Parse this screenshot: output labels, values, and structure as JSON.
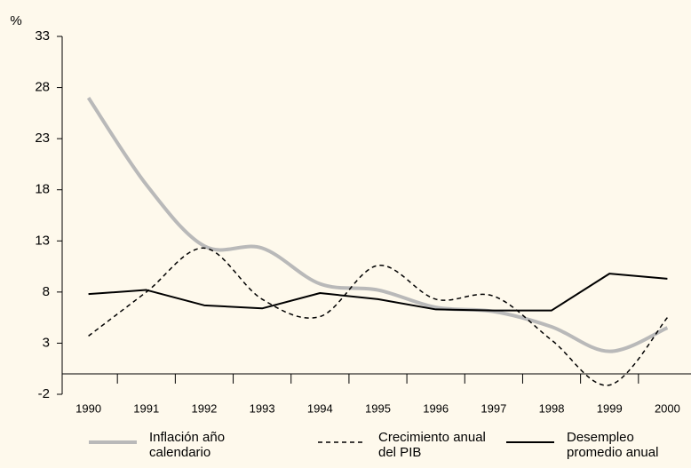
{
  "chart_data": {
    "type": "line",
    "ylabel": "%",
    "categories": [
      "1990",
      "1991",
      "1992",
      "1993",
      "1994",
      "1995",
      "1996",
      "1997",
      "1998",
      "1999",
      "2000"
    ],
    "ylim": [
      -2,
      33
    ],
    "yticks": [
      -2,
      3,
      8,
      13,
      18,
      23,
      28,
      33
    ],
    "series": [
      {
        "name": "Inflación año calendario",
        "color": "#b9b9b9",
        "dash": false,
        "width": 4,
        "smooth": true,
        "values": [
          27.0,
          18.5,
          12.5,
          12.3,
          8.8,
          8.2,
          6.5,
          6.1,
          4.6,
          2.2,
          4.5
        ]
      },
      {
        "name": "Crecimiento anual del PIB",
        "color": "#000000",
        "dash": true,
        "width": 1.5,
        "smooth": true,
        "values": [
          3.7,
          8.0,
          12.3,
          7.3,
          5.6,
          10.6,
          7.3,
          7.6,
          3.3,
          -1.1,
          5.5
        ]
      },
      {
        "name": "Desempleo promedio anual",
        "color": "#000000",
        "dash": false,
        "width": 2,
        "smooth": false,
        "values": [
          7.8,
          8.2,
          6.7,
          6.4,
          7.9,
          7.3,
          6.3,
          6.2,
          6.2,
          9.8,
          9.3
        ]
      }
    ]
  }
}
